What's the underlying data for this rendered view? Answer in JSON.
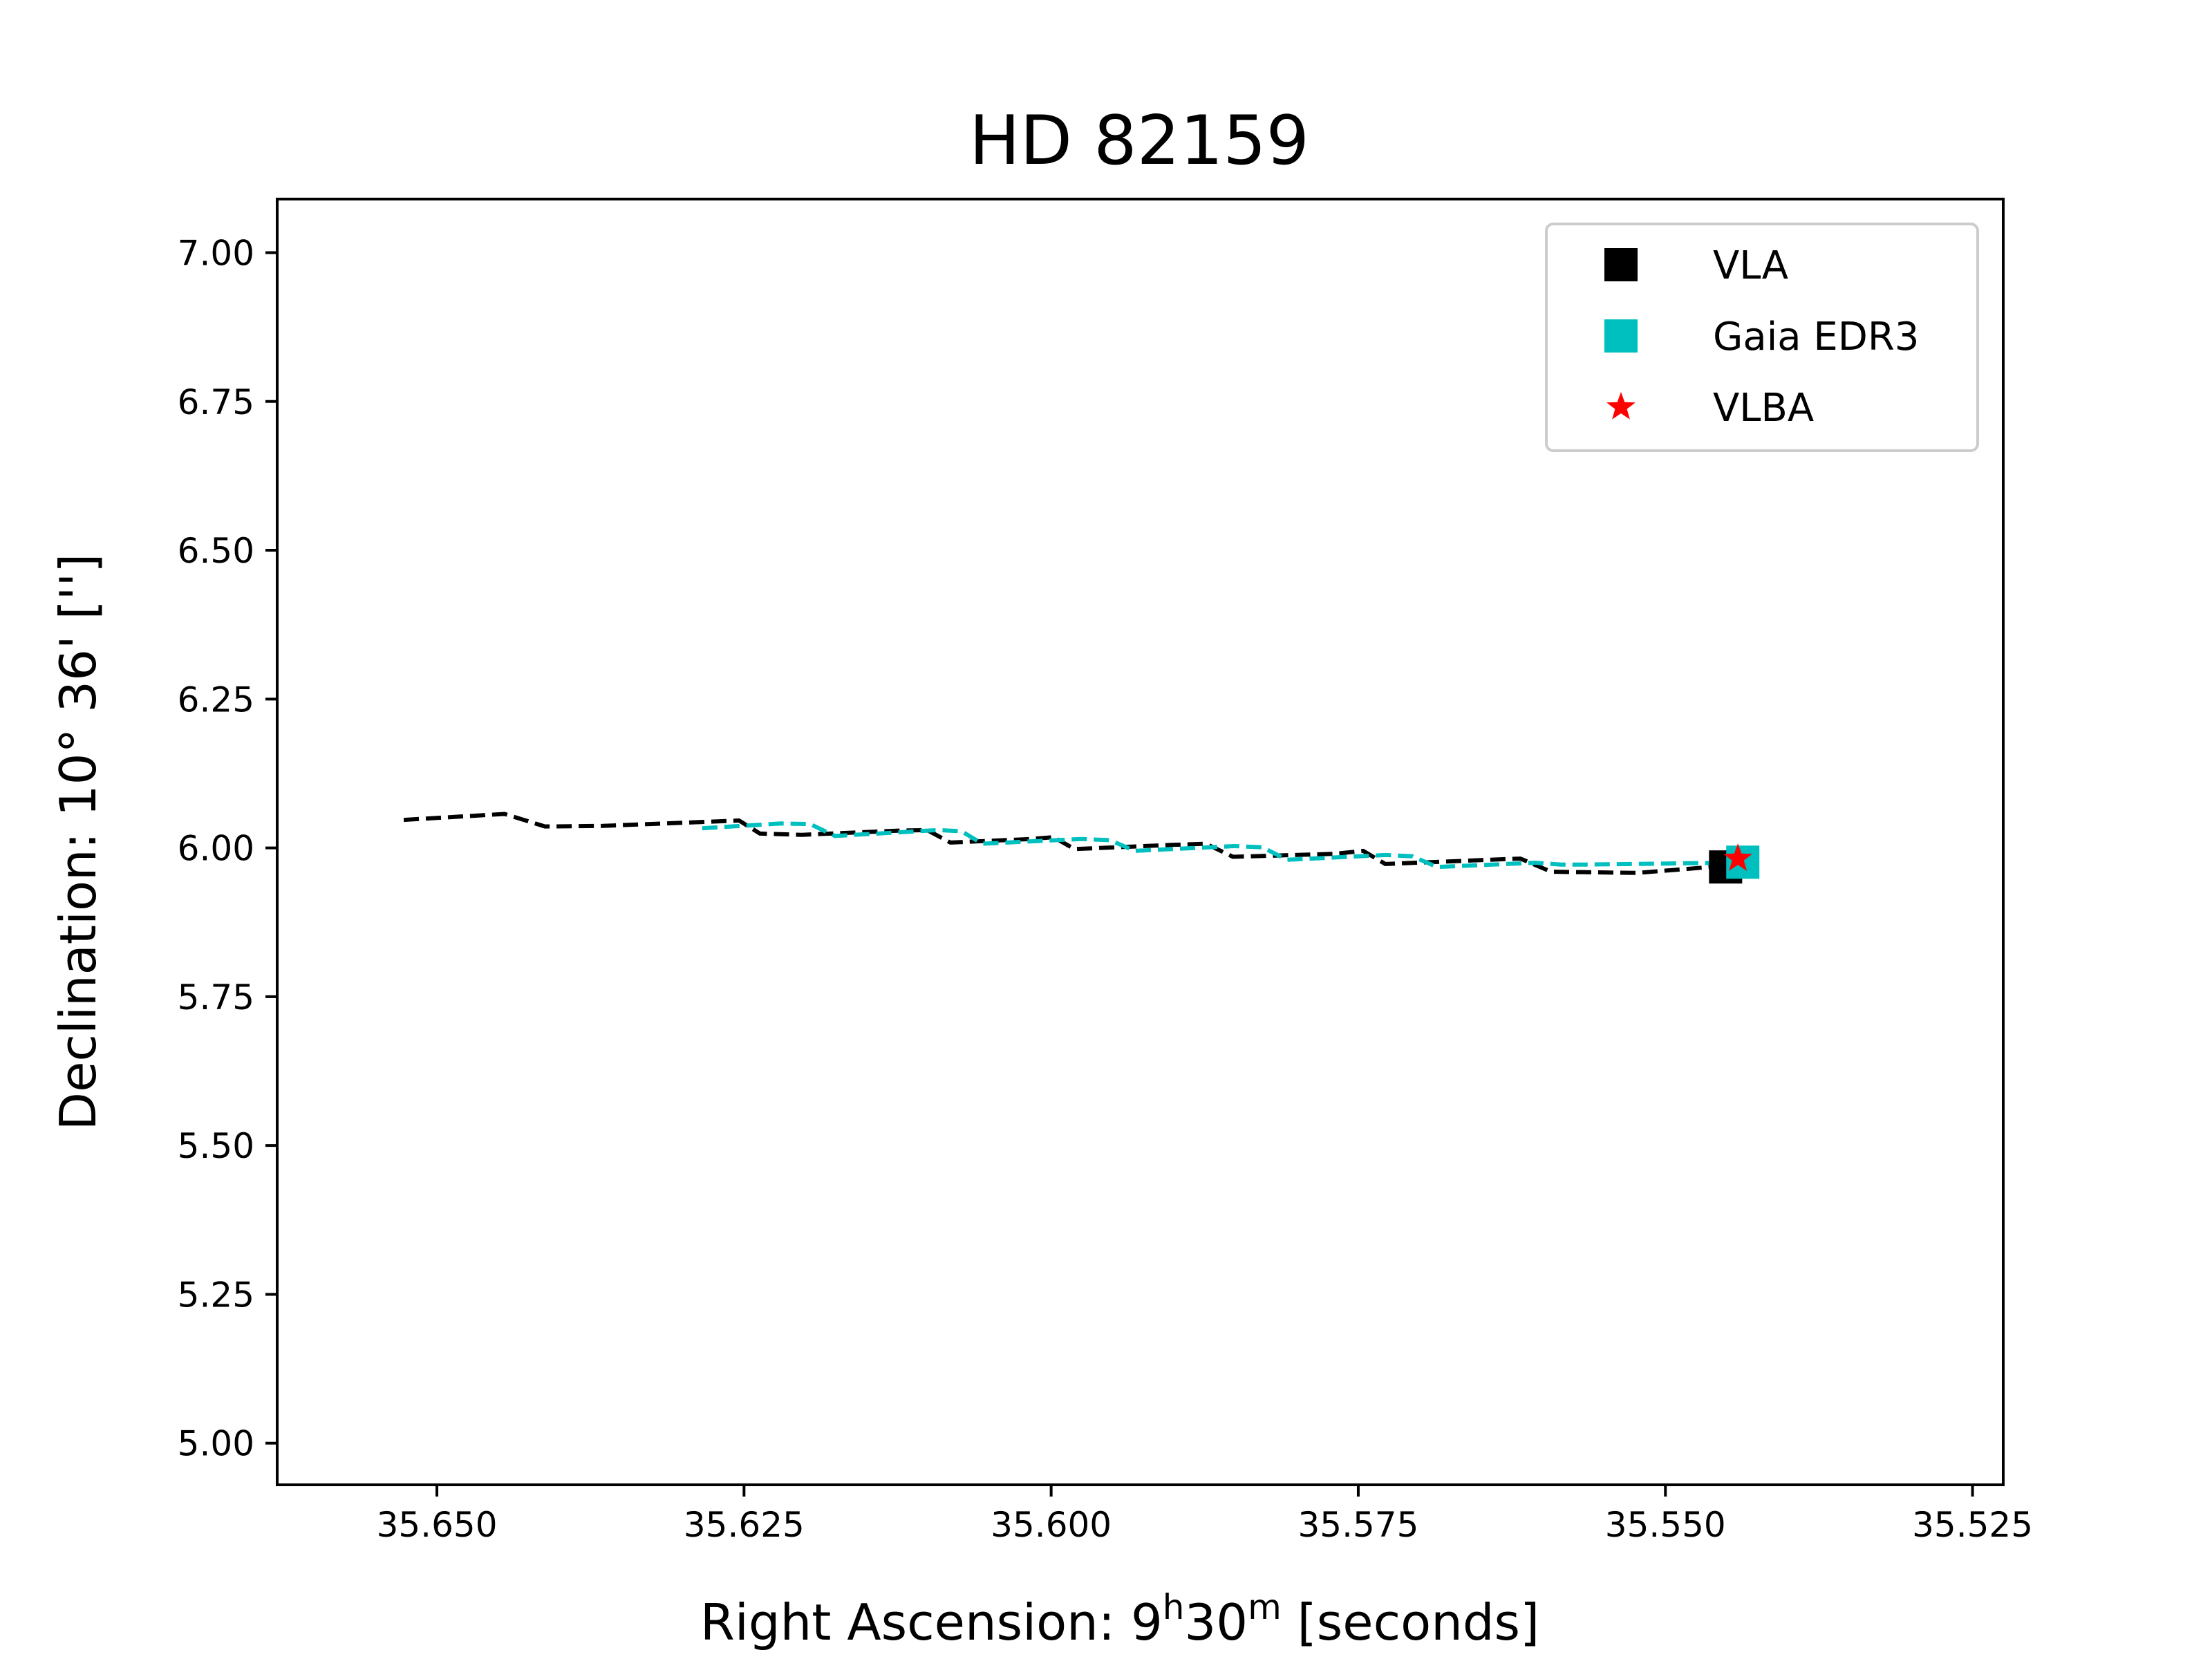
{
  "chart_data": {
    "type": "line",
    "title": "HD 82159",
    "xlabel": "Right Ascension: 9",
    "xlabel_sup1": "h",
    "xlabel_mid": "30",
    "xlabel_sup2": "m",
    "xlabel_tail": " [seconds]",
    "ylabel": "Declination: 10° 36' ['']",
    "xlim": [
      35.663,
      35.5225
    ],
    "ylim": [
      4.93,
      7.09
    ],
    "x_inverted": true,
    "x_ticks": [
      35.65,
      35.625,
      35.6,
      35.575,
      35.55,
      35.525
    ],
    "x_tick_labels": [
      "35.650",
      "35.625",
      "35.600",
      "35.575",
      "35.550",
      "35.525"
    ],
    "y_ticks": [
      5.0,
      5.25,
      5.5,
      5.75,
      6.0,
      6.25,
      6.5,
      6.75,
      7.0
    ],
    "y_tick_labels": [
      "5.00",
      "5.25",
      "5.50",
      "5.75",
      "6.00",
      "6.25",
      "6.50",
      "6.75",
      "7.00"
    ],
    "grid": false,
    "legend_position": "top-right",
    "series": [
      {
        "name": "VLA",
        "kind": "track",
        "color": "#000000",
        "x": [
          35.6527,
          35.6445,
          35.6412,
          35.6365,
          35.6254,
          35.6237,
          35.6203,
          35.6124,
          35.6101,
          35.6082,
          35.6016,
          35.5998,
          35.5981,
          35.5902,
          35.5874,
          35.5852,
          35.5769,
          35.5746,
          35.5728,
          35.5643,
          35.5618,
          35.5593,
          35.5523,
          35.545
        ],
        "y": [
          6.047,
          6.057,
          6.036,
          6.037,
          6.046,
          6.024,
          6.022,
          6.029,
          6.03,
          6.009,
          6.015,
          6.018,
          5.998,
          6.005,
          6.007,
          5.985,
          5.99,
          5.995,
          5.973,
          5.98,
          5.982,
          5.96,
          5.958,
          5.97
        ]
      },
      {
        "name": "Gaia EDR3",
        "kind": "track",
        "color": "#00bfbf",
        "x": [
          35.6284,
          35.622,
          35.6196,
          35.6176,
          35.6092,
          35.6073,
          35.6056,
          35.5976,
          35.5952,
          35.5932,
          35.5851,
          35.5828,
          35.5808,
          35.5728,
          35.5706,
          35.5686,
          35.5606,
          35.5585,
          35.5565,
          35.5448,
          35.5435
        ],
        "y": [
          6.033,
          6.041,
          6.04,
          6.02,
          6.03,
          6.028,
          6.007,
          6.015,
          6.013,
          5.995,
          6.003,
          6.001,
          5.98,
          5.988,
          5.986,
          5.968,
          5.975,
          5.972,
          5.972,
          5.975,
          5.977
        ]
      },
      {
        "name": "VLA",
        "kind": "marker",
        "marker": "square",
        "color": "#000000",
        "x": [
          35.5451
        ],
        "y": [
          5.968
        ],
        "yerr": 0.025
      },
      {
        "name": "Gaia EDR3",
        "kind": "marker",
        "marker": "square",
        "color": "#00bfbf",
        "x": [
          35.5437
        ],
        "y": [
          5.976
        ]
      },
      {
        "name": "VLBA",
        "kind": "marker",
        "marker": "star",
        "color": "#ff0000",
        "x": [
          35.5441
        ],
        "y": [
          5.982
        ]
      }
    ],
    "legend": [
      {
        "label": "VLA",
        "marker": "square",
        "color": "#000000"
      },
      {
        "label": "Gaia EDR3",
        "marker": "square",
        "color": "#00bfbf"
      },
      {
        "label": "VLBA",
        "marker": "star",
        "color": "#ff0000"
      }
    ]
  }
}
